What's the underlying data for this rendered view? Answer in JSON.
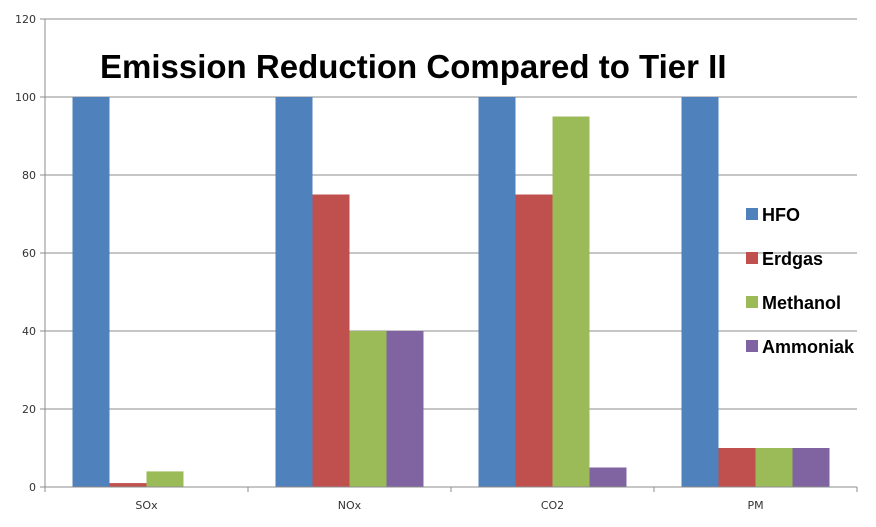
{
  "chart_data": {
    "type": "bar",
    "title": "Emission Reduction Compared to Tier II",
    "categories": [
      "SOx",
      "NOx",
      "CO2",
      "PM"
    ],
    "series": [
      {
        "name": "HFO",
        "color": "#4f81bd",
        "values": [
          100,
          100,
          100,
          100
        ]
      },
      {
        "name": "Erdgas",
        "color": "#c0504d",
        "values": [
          1,
          75,
          75,
          10
        ]
      },
      {
        "name": "Methanol",
        "color": "#9bbb59",
        "values": [
          4,
          40,
          95,
          10
        ]
      },
      {
        "name": "Ammoniak",
        "color": "#8064a2",
        "values": [
          0,
          40,
          5,
          10
        ]
      }
    ],
    "ylim": [
      0,
      120
    ],
    "yticks": [
      0,
      20,
      40,
      60,
      80,
      100,
      120
    ],
    "xlabel": "",
    "ylabel": "",
    "grid": true,
    "legend_position": "right"
  }
}
